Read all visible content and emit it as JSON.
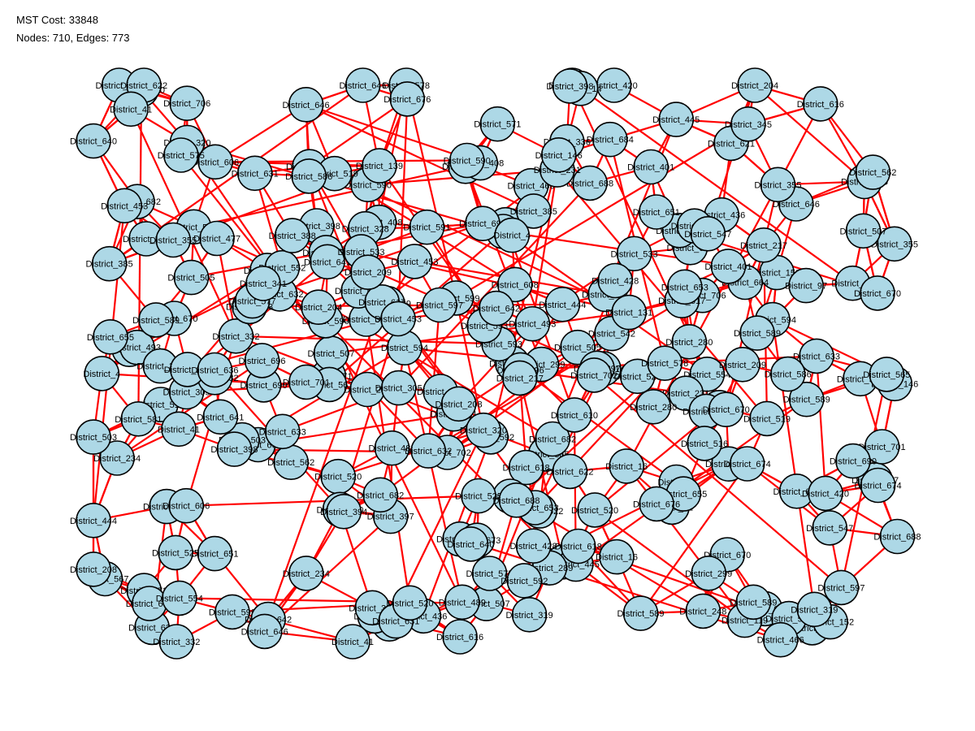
{
  "header": {
    "cost_line": "MST Cost: 33848",
    "counts_line": "Nodes: 710, Edges: 773"
  },
  "graph": {
    "node_fill": "#add8e6",
    "node_stroke": "#000000",
    "edge_color": "#ff0000",
    "node_shape": "circle",
    "nodes": [
      "District_589",
      "District_706",
      "District_519",
      "District_547",
      "District_398",
      "District_632",
      "District_385",
      "District_520",
      "District_670",
      "District_690",
      "District_4",
      "District_489",
      "District_41",
      "District_507",
      "District_590",
      "District_332",
      "District_646",
      "District_688",
      "District_355",
      "District_682",
      "District_529",
      "District_554",
      "District_542",
      "District_599",
      "District_702",
      "District_558",
      "District_567",
      "District_621",
      "District_231",
      "District_622",
      "District_646",
      "District_682",
      "District_420",
      "District_408",
      "District_589",
      "District_594",
      "District_655",
      "District_610",
      "District_493",
      "District_633",
      "District_577",
      "District_552",
      "District_676",
      "District_664",
      "District_616",
      "District_516",
      "District_345",
      "District_533",
      "District_586",
      "District_701",
      "District_500",
      "District_665",
      "District_617",
      "District_575",
      "District_453",
      "District_336",
      "District_641",
      "District_388",
      "District_622",
      "District_248",
      "District_152",
      "District_525",
      "District_673",
      "District_640",
      "District_445",
      "District_436",
      "District_645",
      "District_401",
      "District_477",
      "District_14",
      "District_146",
      "District_394",
      "District_670",
      "District_208",
      "District_204",
      "District_16",
      "District_562",
      "District_565",
      "District_131",
      "District_597",
      "District_280",
      "District_328",
      "District_119",
      "District_209",
      "District_305",
      "District_341",
      "District_591",
      "District_578",
      "District_608",
      "District_618",
      "District_522",
      "District_97",
      "District_234",
      "District_505",
      "District_696",
      "District_41",
      "District_139",
      "District_503",
      "District_217",
      "District_397",
      "District_289",
      "District_428",
      "District_592",
      "District_571",
      "District_593",
      "District_674",
      "District_320",
      "District_453",
      "District_466",
      "District_631",
      "District_651",
      "District_606",
      "District_642",
      "District_299",
      "District_319",
      "District_444",
      "District_684",
      "District_581",
      "District_636",
      "District_653"
    ],
    "edge_count_shown": 773,
    "node_count_shown": 710
  }
}
